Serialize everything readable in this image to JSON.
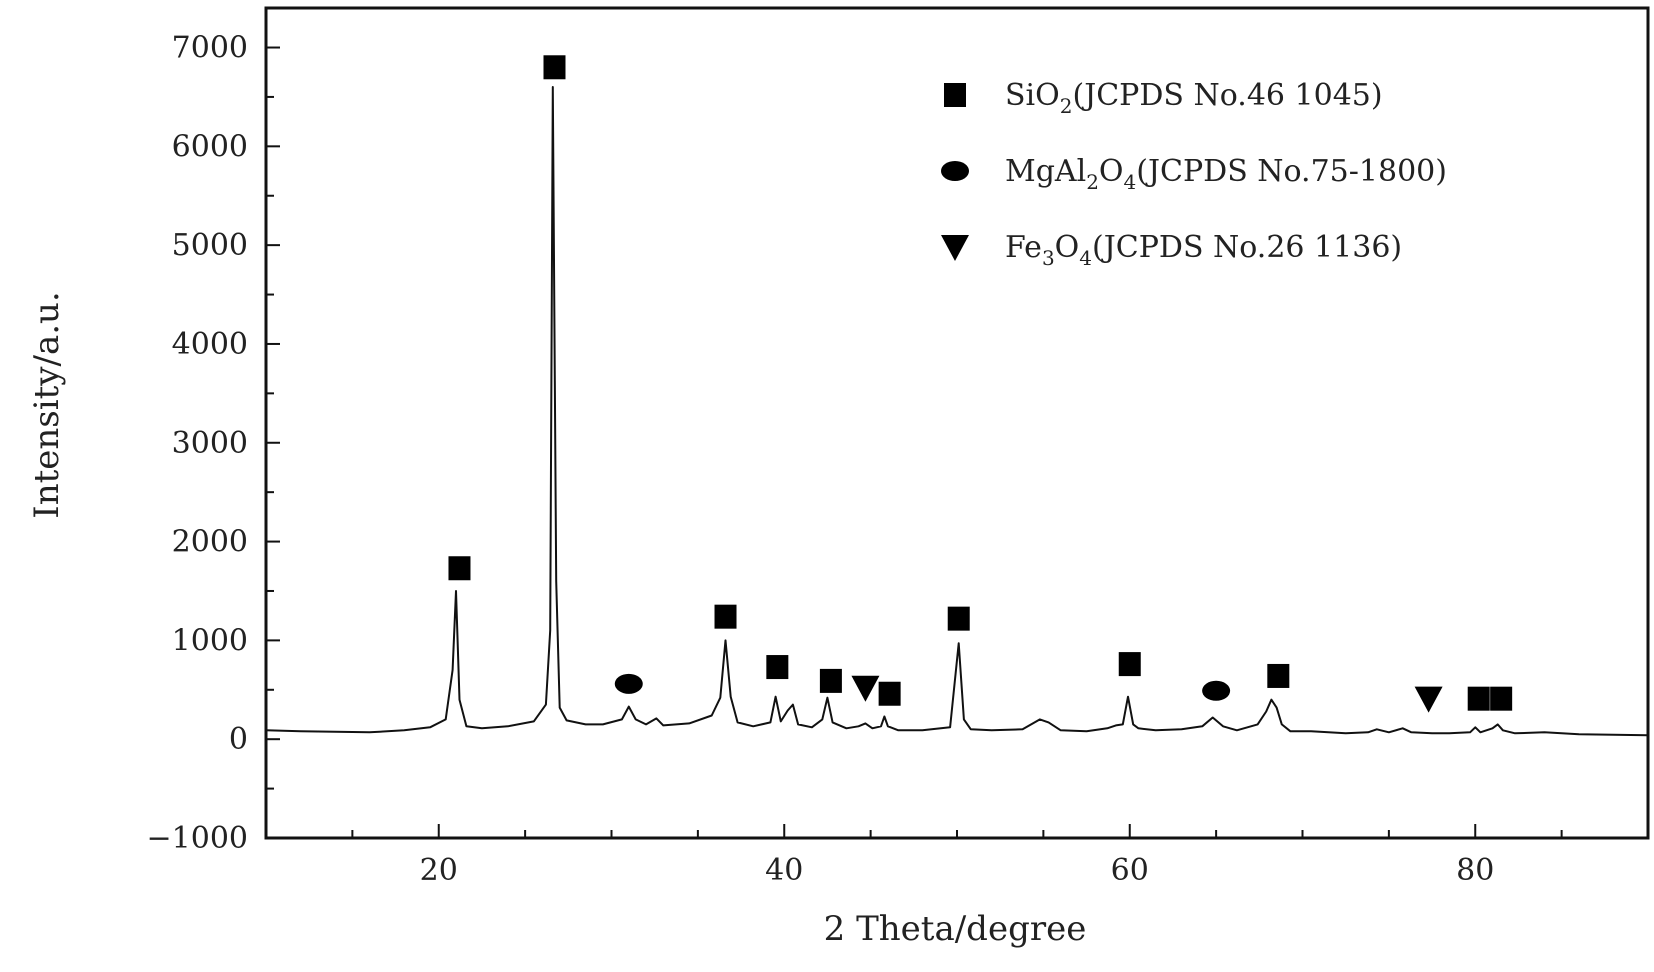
{
  "chart_data": {
    "type": "line",
    "title": "",
    "xlabel": "2 Theta/degree",
    "ylabel": "Intensity/a.u.",
    "xlim": [
      10,
      90
    ],
    "ylim": [
      -1000,
      7400
    ],
    "x_ticks": [
      20,
      40,
      60,
      80
    ],
    "y_ticks": [
      -1000,
      0,
      1000,
      2000,
      3000,
      4000,
      5000,
      6000,
      7000
    ],
    "grid": false,
    "legend_position": "top-right",
    "series": [
      {
        "values_description_free": true,
        "x": [
          10,
          12,
          14,
          16,
          18,
          19.5,
          20.4,
          20.8,
          21.0,
          21.2,
          21.6,
          22.5,
          24,
          25.5,
          26.2,
          26.45,
          26.6,
          26.8,
          27.0,
          27.4,
          28.5,
          29.5,
          30.6,
          31.0,
          31.4,
          32.0,
          32.6,
          33.0,
          34.5,
          35.8,
          36.3,
          36.6,
          36.9,
          37.3,
          38.2,
          39.2,
          39.5,
          39.8,
          40.2,
          40.5,
          40.8,
          41.6,
          42.2,
          42.5,
          42.8,
          43.6,
          44.3,
          44.7,
          45.1,
          45.6,
          45.8,
          46.0,
          46.6,
          48.0,
          49.6,
          50.1,
          50.4,
          50.8,
          52,
          53.8,
          54.8,
          55.3,
          56,
          57.5,
          58.7,
          59.2,
          59.6,
          59.9,
          60.2,
          60.5,
          61.5,
          63,
          64.2,
          64.8,
          65.4,
          66.2,
          67.4,
          67.9,
          68.2,
          68.5,
          68.8,
          69.3,
          70.5,
          72.5,
          73.8,
          74.3,
          75.0,
          75.8,
          76.3,
          77.5,
          78.5,
          79.7,
          80.0,
          80.3,
          81.0,
          81.3,
          81.6,
          82.3,
          84,
          86,
          88,
          90
        ],
        "y": [
          90,
          80,
          75,
          70,
          90,
          120,
          200,
          700,
          1500,
          400,
          130,
          110,
          130,
          180,
          350,
          1100,
          6600,
          1600,
          320,
          190,
          150,
          150,
          200,
          330,
          200,
          150,
          210,
          140,
          160,
          240,
          420,
          1000,
          430,
          170,
          130,
          170,
          430,
          180,
          290,
          350,
          150,
          120,
          200,
          420,
          170,
          110,
          130,
          160,
          110,
          130,
          230,
          130,
          90,
          90,
          120,
          970,
          200,
          100,
          90,
          100,
          200,
          170,
          90,
          80,
          110,
          140,
          150,
          430,
          150,
          110,
          90,
          100,
          130,
          220,
          130,
          90,
          150,
          280,
          400,
          320,
          150,
          80,
          80,
          60,
          70,
          100,
          70,
          110,
          70,
          60,
          60,
          70,
          120,
          70,
          110,
          150,
          90,
          60,
          70,
          50,
          45,
          40
        ]
      }
    ],
    "markers": [
      {
        "shape": "square",
        "x": 21.2,
        "y": 1730
      },
      {
        "shape": "square",
        "x": 26.7,
        "y": 6800
      },
      {
        "shape": "circle",
        "x": 31.0,
        "y": 560
      },
      {
        "shape": "square",
        "x": 36.6,
        "y": 1240
      },
      {
        "shape": "square",
        "x": 39.6,
        "y": 730
      },
      {
        "shape": "square",
        "x": 42.7,
        "y": 590
      },
      {
        "shape": "triangle",
        "x": 44.7,
        "y": 520
      },
      {
        "shape": "square",
        "x": 46.1,
        "y": 460
      },
      {
        "shape": "square",
        "x": 50.1,
        "y": 1220
      },
      {
        "shape": "square",
        "x": 60.0,
        "y": 760
      },
      {
        "shape": "circle",
        "x": 65.0,
        "y": 490
      },
      {
        "shape": "square",
        "x": 68.6,
        "y": 640
      },
      {
        "shape": "triangle",
        "x": 77.3,
        "y": 410
      },
      {
        "shape": "square",
        "x": 80.2,
        "y": 410
      },
      {
        "shape": "square",
        "x": 81.5,
        "y": 410
      }
    ],
    "legend": [
      {
        "shape": "square",
        "pre": "SiO",
        "sub": "2",
        "post": "(JCPDS No.46 1045)"
      },
      {
        "shape": "circle",
        "pre": "MgAl",
        "sub": "2",
        "mid": "O",
        "sub2": "4",
        "post": "(JCPDS No.75-1800)"
      },
      {
        "shape": "triangle",
        "pre": "Fe",
        "sub": "3",
        "mid": "O",
        "sub2": "4",
        "post": "(JCPDS No.26 1136)"
      }
    ]
  }
}
